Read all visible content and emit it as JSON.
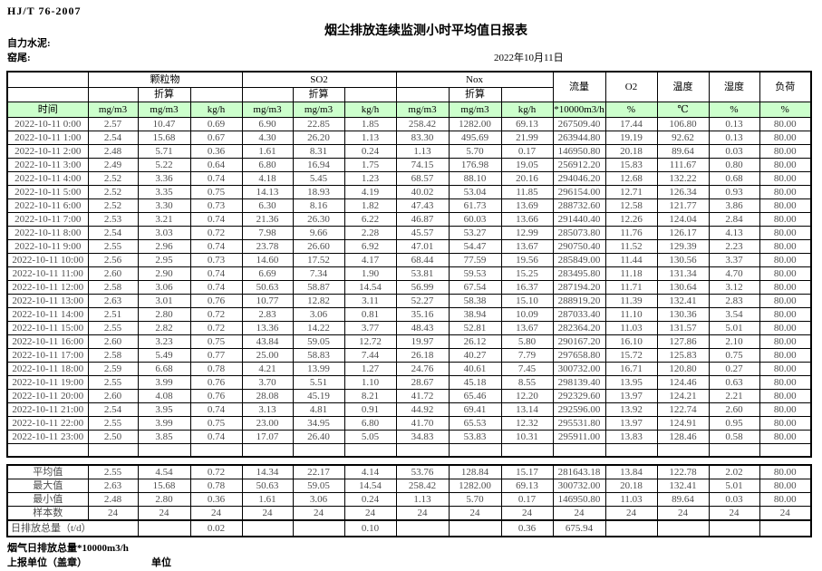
{
  "meta": {
    "standard": "HJ/T 76-2007",
    "title": "烟尘排放连续监测小时平均值日报表",
    "company": "自力水泥:",
    "location": "窑尾:",
    "date": "2022年10月11日"
  },
  "colors": {
    "unit_row_bg": "#ccffcc",
    "unit_row_text": "#0f6b0f",
    "border": "#000000",
    "data_text": "#4d4d4d"
  },
  "table": {
    "time_header": "时间",
    "groups": [
      "颗粒物",
      "SO2",
      "Nox"
    ],
    "converted": "折算",
    "singles": [
      "流量",
      "O2",
      "温度",
      "湿度",
      "负荷"
    ],
    "units": [
      "mg/m3",
      "mg/m3",
      "kg/h",
      "mg/m3",
      "mg/m3",
      "kg/h",
      "mg/m3",
      "mg/m3",
      "kg/h",
      "*10000m3/h",
      "%",
      "℃",
      "%",
      "%"
    ],
    "rows": [
      [
        "2022-10-11 0:00",
        "2.57",
        "10.47",
        "0.69",
        "6.90",
        "22.85",
        "1.85",
        "258.42",
        "1282.00",
        "69.13",
        "267509.40",
        "17.44",
        "106.80",
        "0.13",
        "80.00"
      ],
      [
        "2022-10-11 1:00",
        "2.54",
        "15.68",
        "0.67",
        "4.30",
        "26.20",
        "1.13",
        "83.30",
        "495.69",
        "21.99",
        "263944.80",
        "19.19",
        "92.62",
        "0.13",
        "80.00"
      ],
      [
        "2022-10-11 2:00",
        "2.48",
        "5.71",
        "0.36",
        "1.61",
        "8.31",
        "0.24",
        "1.13",
        "5.70",
        "0.17",
        "146950.80",
        "20.18",
        "89.64",
        "0.03",
        "80.00"
      ],
      [
        "2022-10-11 3:00",
        "2.49",
        "5.22",
        "0.64",
        "6.80",
        "16.94",
        "1.75",
        "74.15",
        "176.98",
        "19.05",
        "256912.20",
        "15.83",
        "111.67",
        "0.80",
        "80.00"
      ],
      [
        "2022-10-11 4:00",
        "2.52",
        "3.36",
        "0.74",
        "4.18",
        "5.45",
        "1.23",
        "68.57",
        "88.10",
        "20.16",
        "294046.20",
        "12.68",
        "132.22",
        "0.68",
        "80.00"
      ],
      [
        "2022-10-11 5:00",
        "2.52",
        "3.35",
        "0.75",
        "14.13",
        "18.93",
        "4.19",
        "40.02",
        "53.04",
        "11.85",
        "296154.00",
        "12.71",
        "126.34",
        "0.93",
        "80.00"
      ],
      [
        "2022-10-11 6:00",
        "2.52",
        "3.30",
        "0.73",
        "6.30",
        "8.16",
        "1.82",
        "47.43",
        "61.73",
        "13.69",
        "288732.60",
        "12.58",
        "121.77",
        "3.86",
        "80.00"
      ],
      [
        "2022-10-11 7:00",
        "2.53",
        "3.21",
        "0.74",
        "21.36",
        "26.30",
        "6.22",
        "46.87",
        "60.03",
        "13.66",
        "291440.40",
        "12.26",
        "124.04",
        "2.84",
        "80.00"
      ],
      [
        "2022-10-11 8:00",
        "2.54",
        "3.03",
        "0.72",
        "7.98",
        "9.66",
        "2.28",
        "45.57",
        "53.27",
        "12.99",
        "285073.80",
        "11.76",
        "126.17",
        "4.13",
        "80.00"
      ],
      [
        "2022-10-11 9:00",
        "2.55",
        "2.96",
        "0.74",
        "23.78",
        "26.60",
        "6.92",
        "47.01",
        "54.47",
        "13.67",
        "290750.40",
        "11.52",
        "129.39",
        "2.23",
        "80.00"
      ],
      [
        "2022-10-11 10:00",
        "2.56",
        "2.95",
        "0.73",
        "14.60",
        "17.52",
        "4.17",
        "68.44",
        "77.59",
        "19.56",
        "285849.00",
        "11.44",
        "130.56",
        "3.37",
        "80.00"
      ],
      [
        "2022-10-11 11:00",
        "2.60",
        "2.90",
        "0.74",
        "6.69",
        "7.34",
        "1.90",
        "53.81",
        "59.53",
        "15.25",
        "283495.80",
        "11.18",
        "131.34",
        "4.70",
        "80.00"
      ],
      [
        "2022-10-11 12:00",
        "2.58",
        "3.06",
        "0.74",
        "50.63",
        "58.87",
        "14.54",
        "56.99",
        "67.54",
        "16.37",
        "287194.20",
        "11.71",
        "130.64",
        "3.12",
        "80.00"
      ],
      [
        "2022-10-11 13:00",
        "2.63",
        "3.01",
        "0.76",
        "10.77",
        "12.82",
        "3.11",
        "52.27",
        "58.38",
        "15.10",
        "288919.20",
        "11.39",
        "132.41",
        "2.83",
        "80.00"
      ],
      [
        "2022-10-11 14:00",
        "2.51",
        "2.80",
        "0.72",
        "2.83",
        "3.06",
        "0.81",
        "35.16",
        "38.94",
        "10.09",
        "287033.40",
        "11.10",
        "130.36",
        "3.54",
        "80.00"
      ],
      [
        "2022-10-11 15:00",
        "2.55",
        "2.82",
        "0.72",
        "13.36",
        "14.22",
        "3.77",
        "48.43",
        "52.81",
        "13.67",
        "282364.20",
        "11.03",
        "131.57",
        "5.01",
        "80.00"
      ],
      [
        "2022-10-11 16:00",
        "2.60",
        "3.23",
        "0.75",
        "43.84",
        "59.05",
        "12.72",
        "19.97",
        "26.12",
        "5.80",
        "290167.20",
        "16.10",
        "127.86",
        "2.10",
        "80.00"
      ],
      [
        "2022-10-11 17:00",
        "2.58",
        "5.49",
        "0.77",
        "25.00",
        "58.83",
        "7.44",
        "26.18",
        "40.27",
        "7.79",
        "297658.80",
        "15.72",
        "125.83",
        "0.75",
        "80.00"
      ],
      [
        "2022-10-11 18:00",
        "2.59",
        "6.68",
        "0.78",
        "4.21",
        "13.99",
        "1.27",
        "24.76",
        "40.61",
        "7.45",
        "300732.00",
        "16.71",
        "120.80",
        "0.27",
        "80.00"
      ],
      [
        "2022-10-11 19:00",
        "2.55",
        "3.99",
        "0.76",
        "3.70",
        "5.51",
        "1.10",
        "28.67",
        "45.18",
        "8.55",
        "298139.40",
        "13.95",
        "124.46",
        "0.63",
        "80.00"
      ],
      [
        "2022-10-11 20:00",
        "2.60",
        "4.08",
        "0.76",
        "28.08",
        "45.19",
        "8.21",
        "41.72",
        "65.46",
        "12.20",
        "292329.60",
        "13.97",
        "124.21",
        "2.21",
        "80.00"
      ],
      [
        "2022-10-11 21:00",
        "2.54",
        "3.95",
        "0.74",
        "3.13",
        "4.81",
        "0.91",
        "44.92",
        "69.41",
        "13.14",
        "292596.00",
        "13.92",
        "122.74",
        "2.60",
        "80.00"
      ],
      [
        "2022-10-11 22:00",
        "2.55",
        "3.99",
        "0.75",
        "23.00",
        "34.95",
        "6.80",
        "41.70",
        "65.53",
        "12.32",
        "295531.80",
        "13.97",
        "124.91",
        "0.95",
        "80.00"
      ],
      [
        "2022-10-11 23:00",
        "2.50",
        "3.85",
        "0.74",
        "17.07",
        "26.40",
        "5.05",
        "34.83",
        "53.83",
        "10.31",
        "295911.00",
        "13.83",
        "128.46",
        "0.58",
        "80.00"
      ]
    ],
    "summary_rows": [
      [
        "平均值",
        "2.55",
        "4.54",
        "0.72",
        "14.34",
        "22.17",
        "4.14",
        "53.76",
        "128.84",
        "15.17",
        "281643.18",
        "13.84",
        "122.78",
        "2.02",
        "80.00"
      ],
      [
        "最大值",
        "2.63",
        "15.68",
        "0.78",
        "50.63",
        "59.05",
        "14.54",
        "258.42",
        "1282.00",
        "69.13",
        "300732.00",
        "20.18",
        "132.41",
        "5.01",
        "80.00"
      ],
      [
        "最小值",
        "2.48",
        "2.80",
        "0.36",
        "1.61",
        "3.06",
        "0.24",
        "1.13",
        "5.70",
        "0.17",
        "146950.80",
        "11.03",
        "89.64",
        "0.03",
        "80.00"
      ],
      [
        "样本数",
        "24",
        "24",
        "24",
        "24",
        "24",
        "24",
        "24",
        "24",
        "24",
        "24",
        "24",
        "24",
        "24",
        "24"
      ]
    ],
    "daily_total": {
      "label": "日排放总量（t/d）",
      "values": [
        "",
        "0.02",
        "",
        "",
        "0.10",
        "",
        "",
        "0.36",
        "675.94",
        "",
        "",
        "",
        ""
      ]
    }
  },
  "footer": {
    "flue_total": "烟气日排放总量*10000m3/h",
    "report_unit": "上报单位（盖章）",
    "unit_label": "单位"
  }
}
